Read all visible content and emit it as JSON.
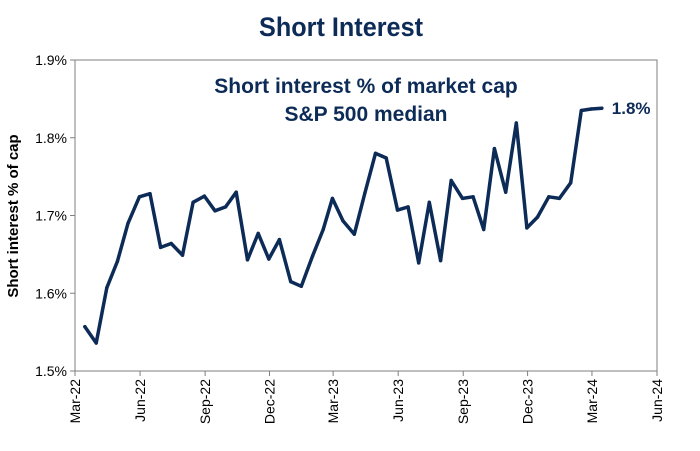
{
  "colors": {
    "line": "#0d2b57",
    "text": "#0d2b57",
    "axis": "#7f7f7f",
    "frame": "#7f7f7f"
  },
  "chart_data": {
    "type": "line",
    "title": "Short Interest",
    "annotation_lines": [
      "Short interest % of market cap",
      "S&P 500 median"
    ],
    "ylabel": "Short interest % of cap",
    "xlabel": "",
    "xlim": [
      "2022-03-01",
      "2024-06-01"
    ],
    "ylim": [
      1.5,
      1.9
    ],
    "grid": false,
    "x_ticks": [
      {
        "date": "2022-03-01",
        "label": "Mar-22"
      },
      {
        "date": "2022-06-01",
        "label": "Jun-22"
      },
      {
        "date": "2022-09-01",
        "label": "Sep-22"
      },
      {
        "date": "2022-12-01",
        "label": "Dec-22"
      },
      {
        "date": "2023-03-01",
        "label": "Mar-23"
      },
      {
        "date": "2023-06-01",
        "label": "Jun-23"
      },
      {
        "date": "2023-09-01",
        "label": "Sep-23"
      },
      {
        "date": "2023-12-01",
        "label": "Dec-23"
      },
      {
        "date": "2024-03-01",
        "label": "Mar-24"
      },
      {
        "date": "2024-06-01",
        "label": "Jun-24"
      }
    ],
    "y_ticks": [
      {
        "value": 1.5,
        "label": "1.5%"
      },
      {
        "value": 1.6,
        "label": "1.6%"
      },
      {
        "value": 1.7,
        "label": "1.7%"
      },
      {
        "value": 1.8,
        "label": "1.8%"
      },
      {
        "value": 1.9,
        "label": "1.9%"
      }
    ],
    "series": [
      {
        "x": [
          "2022-03-15",
          "2022-03-31",
          "2022-04-15",
          "2022-04-30",
          "2022-05-15",
          "2022-05-31",
          "2022-06-15",
          "2022-06-30",
          "2022-07-15",
          "2022-07-31",
          "2022-08-15",
          "2022-08-31",
          "2022-09-15",
          "2022-09-30",
          "2022-10-15",
          "2022-10-31",
          "2022-11-15",
          "2022-11-30",
          "2022-12-15",
          "2022-12-31",
          "2023-01-15",
          "2023-01-31",
          "2023-02-15",
          "2023-02-28",
          "2023-03-15",
          "2023-03-31",
          "2023-04-15",
          "2023-04-30",
          "2023-05-15",
          "2023-05-31",
          "2023-06-15",
          "2023-06-30",
          "2023-07-15",
          "2023-07-31",
          "2023-08-15",
          "2023-08-31",
          "2023-09-15",
          "2023-09-30",
          "2023-10-15",
          "2023-10-31",
          "2023-11-15",
          "2023-11-30",
          "2023-12-15",
          "2023-12-31",
          "2024-01-15",
          "2024-01-31",
          "2024-02-15",
          "2024-02-29",
          "2024-03-15"
        ],
        "values": [
          1.557,
          1.536,
          1.607,
          1.641,
          1.69,
          1.724,
          1.728,
          1.659,
          1.664,
          1.649,
          1.717,
          1.725,
          1.706,
          1.711,
          1.73,
          1.643,
          1.677,
          1.644,
          1.669,
          1.615,
          1.609,
          1.648,
          1.682,
          1.722,
          1.693,
          1.676,
          1.729,
          1.78,
          1.774,
          1.707,
          1.711,
          1.639,
          1.717,
          1.642,
          1.745,
          1.722,
          1.724,
          1.682,
          1.786,
          1.73,
          1.819,
          1.684,
          1.698,
          1.724,
          1.722,
          1.742,
          1.835,
          1.837,
          1.838
        ]
      }
    ],
    "end_label": "1.8%"
  }
}
